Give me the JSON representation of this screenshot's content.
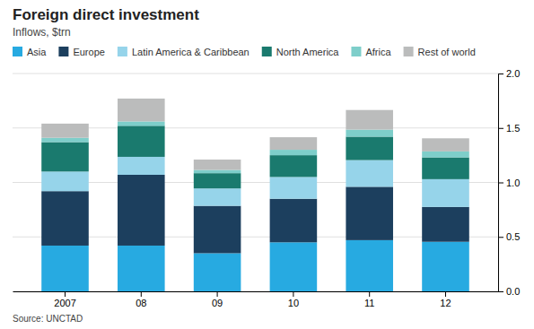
{
  "chart_data": {
    "type": "bar",
    "stacked": true,
    "grid": true,
    "title": "Foreign direct investment",
    "subtitle": "Inflows, $trn",
    "source": "Source: UNCTAD",
    "categories": [
      "2007",
      "08",
      "09",
      "10",
      "11",
      "12"
    ],
    "series": [
      {
        "name": "Asia",
        "color": "#27AAE1",
        "values": [
          0.42,
          0.42,
          0.35,
          0.45,
          0.47,
          0.455
        ]
      },
      {
        "name": "Europe",
        "color": "#1C3F5E",
        "values": [
          0.5,
          0.65,
          0.435,
          0.4,
          0.49,
          0.32
        ]
      },
      {
        "name": "Latin America & Caribbean",
        "color": "#96D4EA",
        "values": [
          0.18,
          0.165,
          0.16,
          0.2,
          0.245,
          0.255
        ]
      },
      {
        "name": "North America",
        "color": "#1A7A6E",
        "values": [
          0.27,
          0.285,
          0.14,
          0.2,
          0.215,
          0.2
        ]
      },
      {
        "name": "Africa",
        "color": "#7ECECA",
        "values": [
          0.04,
          0.04,
          0.03,
          0.05,
          0.065,
          0.055
        ]
      },
      {
        "name": "Rest of world",
        "color": "#BBBCBC",
        "values": [
          0.13,
          0.21,
          0.095,
          0.115,
          0.18,
          0.12
        ]
      }
    ],
    "ylim": [
      0,
      2.0
    ],
    "yticks": [
      {
        "value": 0,
        "label": "0.0"
      },
      0.5,
      {
        "value": 1.0,
        "label": "1.0"
      },
      1.5,
      {
        "value": 2.0,
        "label": "2.0"
      }
    ]
  }
}
